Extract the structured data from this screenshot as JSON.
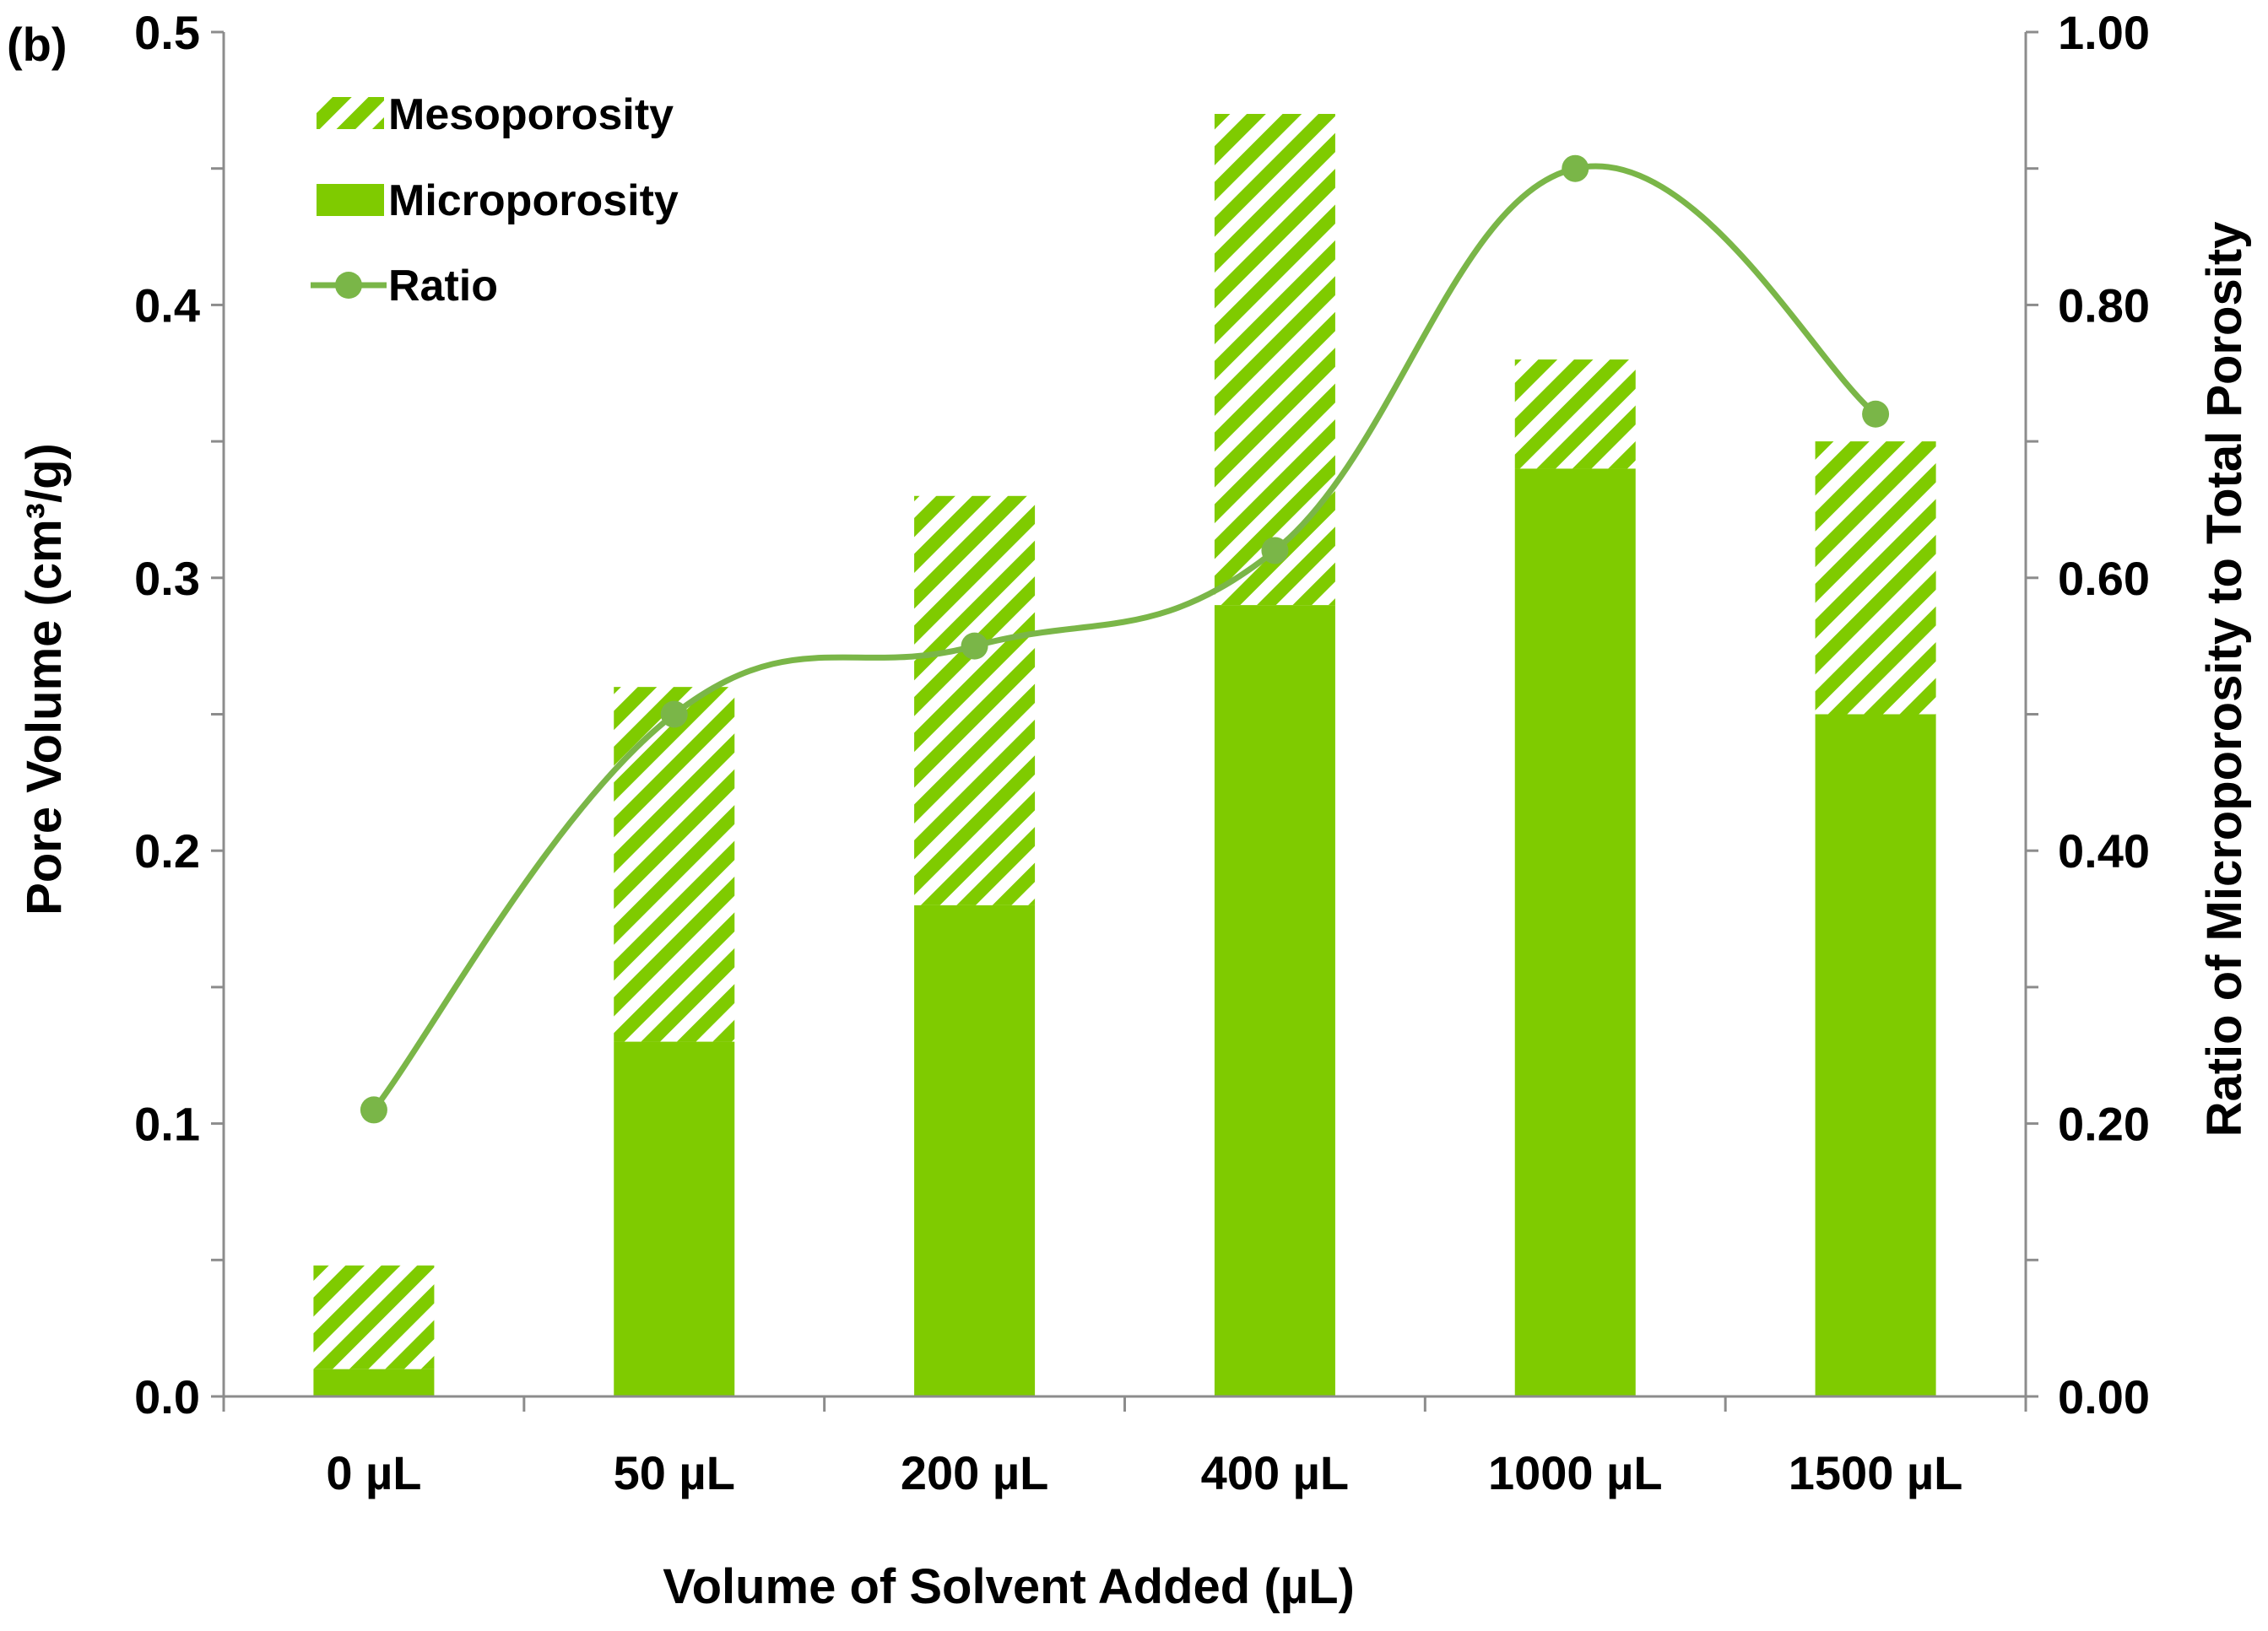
{
  "panel_label": "(b)",
  "colors": {
    "micro": "#7fcb00",
    "meso_hatch": "#7fcb00",
    "ratio_line": "#7ab648",
    "axis": "#8c8c8c"
  },
  "chart_data": {
    "type": "bar",
    "stacked": true,
    "title": "",
    "categories": [
      "0 µL",
      "50 µL",
      "200 µL",
      "400 µL",
      "1000 µL",
      "1500 µL"
    ],
    "series": [
      {
        "name": "Microporosity",
        "kind": "bar",
        "axis": "left",
        "values": [
          0.01,
          0.13,
          0.18,
          0.29,
          0.34,
          0.25
        ]
      },
      {
        "name": "Mesoporosity",
        "kind": "bar",
        "axis": "left",
        "values": [
          0.038,
          0.13,
          0.15,
          0.18,
          0.04,
          0.1
        ]
      },
      {
        "name": "Ratio",
        "kind": "line",
        "axis": "right",
        "smooth": true,
        "values": [
          0.21,
          0.5,
          0.55,
          0.62,
          0.9,
          0.72
        ]
      }
    ],
    "xlabel": "Volume of Solvent Added (µL)",
    "ylabel": "Pore Volume (cm³/g)",
    "y2label": "Ratio of Microporosity to Total Porosity",
    "ylim": [
      0,
      0.5
    ],
    "y2lim": [
      0,
      1.0
    ],
    "yticks": [
      "0.0",
      "0.1",
      "0.2",
      "0.3",
      "0.4",
      "0.5"
    ],
    "y2ticks": [
      "0.00",
      "0.20",
      "0.40",
      "0.60",
      "0.80",
      "1.00"
    ],
    "legend": {
      "placement": "top-left",
      "entries": [
        "Mesoporosity",
        "Microporosity",
        "Ratio"
      ]
    },
    "grid": false
  }
}
